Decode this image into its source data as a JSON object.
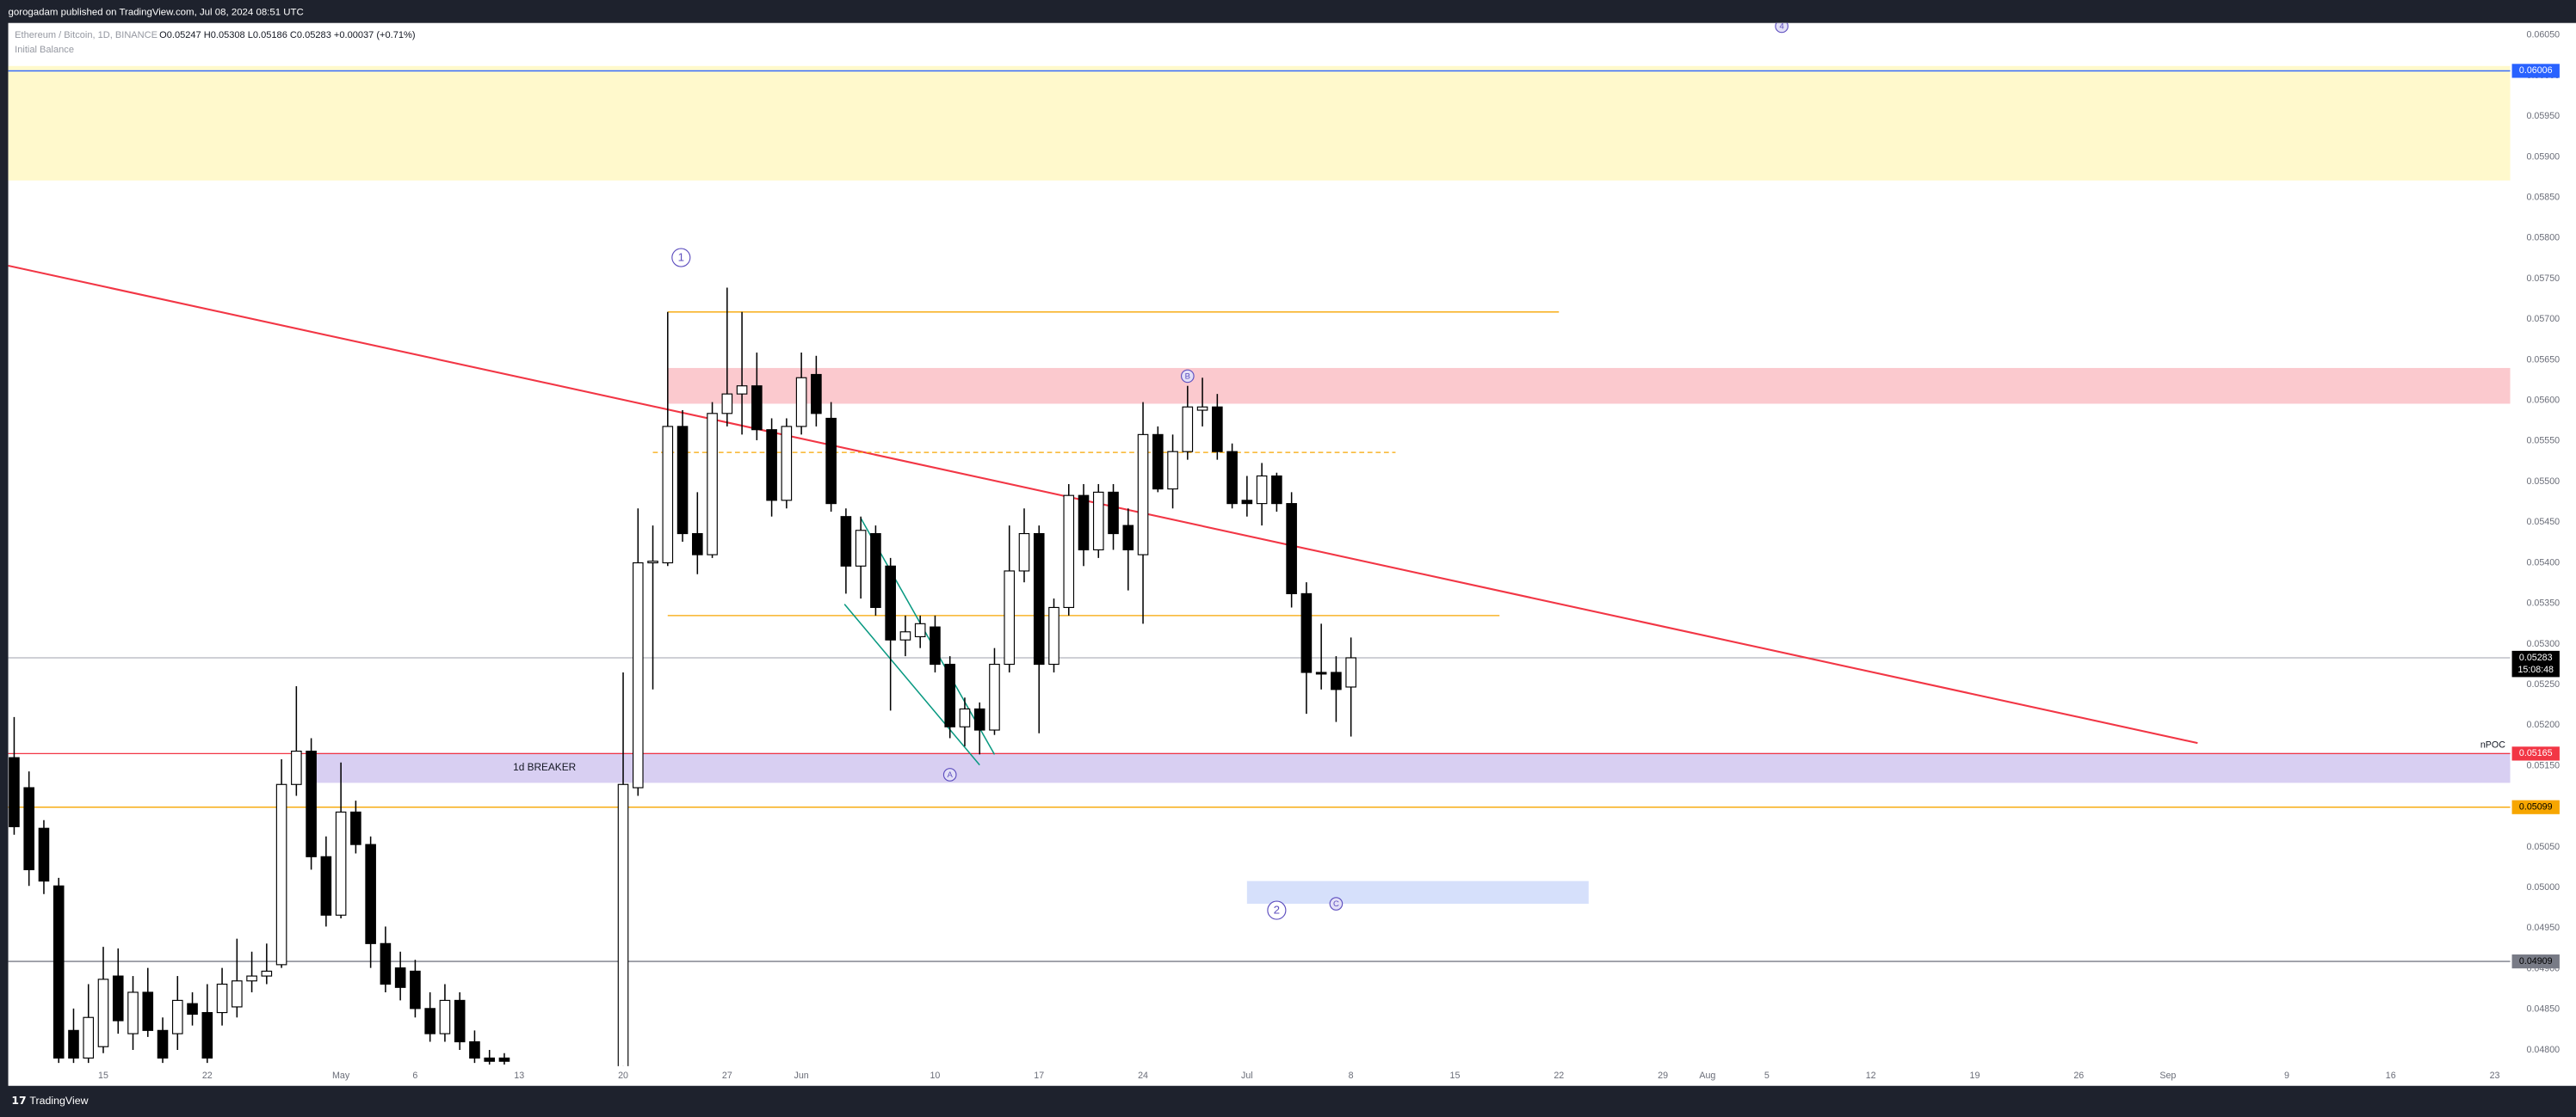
{
  "header": {
    "published": "gorogadam published on TradingView.com, Jul 08, 2024 08:51 UTC",
    "symbol": "Ethereum / Bitcoin, 1D, BINANCE",
    "ohlc": "O0.05247 H0.05308 L0.05186 C0.05283 +0.00037 (+0.71%)",
    "indicator": "Initial Balance"
  },
  "footer": "TradingView",
  "chart_data": {
    "type": "candlestick",
    "up_color": "#ffffff",
    "down_color": "#000000",
    "xlim": [
      -6.4,
      162.05
    ],
    "ylim": [
      0.0478,
      0.06065
    ],
    "grid": false,
    "xticks": [
      {
        "value": 0,
        "label": "15"
      },
      {
        "value": 7,
        "label": "22"
      },
      {
        "value": 16,
        "label": "May"
      },
      {
        "value": 21,
        "label": "6"
      },
      {
        "value": 28,
        "label": "13"
      },
      {
        "value": 35,
        "label": "20"
      },
      {
        "value": 42,
        "label": "27"
      },
      {
        "value": 47,
        "label": "Jun"
      },
      {
        "value": 56,
        "label": "10"
      },
      {
        "value": 63,
        "label": "17"
      },
      {
        "value": 70,
        "label": "24"
      },
      {
        "value": 77,
        "label": "Jul"
      },
      {
        "value": 84,
        "label": "8"
      },
      {
        "value": 91,
        "label": "15"
      },
      {
        "value": 98,
        "label": "22"
      },
      {
        "value": 105,
        "label": "29"
      },
      {
        "value": 108,
        "label": "Aug"
      },
      {
        "value": 112,
        "label": "5"
      },
      {
        "value": 119,
        "label": "12"
      },
      {
        "value": 126,
        "label": "19"
      },
      {
        "value": 133,
        "label": "26"
      },
      {
        "value": 139,
        "label": "Sep"
      },
      {
        "value": 147,
        "label": "9"
      },
      {
        "value": 154,
        "label": "16"
      },
      {
        "value": 161,
        "label": "23"
      }
    ],
    "yticks": [
      {
        "value": 0.048,
        "label": "0.04800"
      },
      {
        "value": 0.0485,
        "label": "0.04850"
      },
      {
        "value": 0.049,
        "label": "0.04900"
      },
      {
        "value": 0.0495,
        "label": "0.04950"
      },
      {
        "value": 0.05,
        "label": "0.05000"
      },
      {
        "value": 0.0505,
        "label": "0.05050"
      },
      {
        "value": 0.051,
        "label": "0.05100"
      },
      {
        "value": 0.0515,
        "label": "0.05150"
      },
      {
        "value": 0.052,
        "label": "0.05200"
      },
      {
        "value": 0.0525,
        "label": "0.05250"
      },
      {
        "value": 0.053,
        "label": "0.05300"
      },
      {
        "value": 0.0535,
        "label": "0.05350"
      },
      {
        "value": 0.054,
        "label": "0.05400"
      },
      {
        "value": 0.0545,
        "label": "0.05450"
      },
      {
        "value": 0.055,
        "label": "0.05500"
      },
      {
        "value": 0.0555,
        "label": "0.05550"
      },
      {
        "value": 0.056,
        "label": "0.05600"
      },
      {
        "value": 0.0565,
        "label": "0.05650"
      },
      {
        "value": 0.057,
        "label": "0.05700"
      },
      {
        "value": 0.0575,
        "label": "0.05750"
      },
      {
        "value": 0.058,
        "label": "0.05800"
      },
      {
        "value": 0.0585,
        "label": "0.05850"
      },
      {
        "value": 0.059,
        "label": "0.05900"
      },
      {
        "value": 0.0595,
        "label": "0.05950"
      },
      {
        "value": 0.06,
        "label": "0.06000"
      },
      {
        "value": 0.0605,
        "label": "0.06050"
      }
    ],
    "x": [
      -6,
      -5,
      -4,
      -3,
      -2,
      -1,
      0,
      1,
      2,
      3,
      4,
      5,
      6,
      7,
      8,
      9,
      10,
      11,
      12,
      13,
      14,
      15,
      16,
      17,
      18,
      19,
      20,
      21,
      22,
      23,
      24,
      25,
      26,
      27,
      35,
      36,
      37,
      38,
      39,
      40,
      41,
      42,
      43,
      44,
      45,
      46,
      47,
      48,
      49,
      50,
      51,
      52,
      53,
      54,
      55,
      56,
      57,
      58,
      59,
      60,
      61,
      62,
      63,
      64,
      65,
      66,
      67,
      68,
      69,
      70,
      71,
      72,
      73,
      74,
      75,
      76,
      77,
      78,
      79,
      80,
      81,
      82,
      83,
      84
    ],
    "open": [
      0.0516,
      0.05123,
      0.05073,
      0.05002,
      0.04824,
      0.0479,
      0.04804,
      0.04891,
      0.0482,
      0.04871,
      0.04824,
      0.0482,
      0.04857,
      0.04846,
      0.04846,
      0.04853,
      0.04885,
      0.04891,
      0.04905,
      0.05127,
      0.05168,
      0.05038,
      0.04966,
      0.05093,
      0.05053,
      0.04931,
      0.04901,
      0.04897,
      0.04851,
      0.0482,
      0.04861,
      0.0481,
      0.0479,
      0.0479,
      0.0475,
      0.05123,
      0.054,
      0.054,
      0.05568,
      0.05436,
      0.0541,
      0.05584,
      0.05608,
      0.05618,
      0.05564,
      0.05477,
      0.05568,
      0.05632,
      0.05578,
      0.05457,
      0.05396,
      0.05436,
      0.05396,
      0.05305,
      0.05309,
      0.05321,
      0.05275,
      0.05198,
      0.0522,
      0.05194,
      0.05275,
      0.0539,
      0.05436,
      0.05275,
      0.05345,
      0.05483,
      0.05416,
      0.05487,
      0.05446,
      0.0541,
      0.05558,
      0.05491,
      0.05537,
      0.05588,
      0.05592,
      0.05537,
      0.05477,
      0.05473,
      0.05507,
      0.05473,
      0.05362,
      0.05265,
      0.05265,
      0.05247
    ],
    "high": [
      0.0521,
      0.05143,
      0.05083,
      0.05012,
      0.04851,
      0.04881,
      0.04927,
      0.04925,
      0.04891,
      0.04901,
      0.0484,
      0.04891,
      0.04871,
      0.04881,
      0.04901,
      0.04937,
      0.04921,
      0.04931,
      0.05158,
      0.05248,
      0.05184,
      0.05063,
      0.05154,
      0.05107,
      0.05063,
      0.04952,
      0.04921,
      0.04911,
      0.04871,
      0.04881,
      0.04871,
      0.04824,
      0.048,
      0.04796,
      0.05265,
      0.05467,
      0.05446,
      0.05709,
      0.05588,
      0.05487,
      0.05598,
      0.05739,
      0.05709,
      0.05659,
      0.05578,
      0.05578,
      0.05659,
      0.05655,
      0.05598,
      0.05467,
      0.05457,
      0.05446,
      0.05406,
      0.05335,
      0.05335,
      0.05335,
      0.05285,
      0.05234,
      0.05228,
      0.05295,
      0.05446,
      0.05467,
      0.05446,
      0.05356,
      0.05497,
      0.05497,
      0.05497,
      0.05497,
      0.05467,
      0.05598,
      0.05568,
      0.05558,
      0.05618,
      0.05628,
      0.05608,
      0.05547,
      0.05507,
      0.05523,
      0.05511,
      0.05487,
      0.05376,
      0.05325,
      0.05285,
      0.05308
    ],
    "low": [
      0.05065,
      0.05002,
      0.04992,
      0.04784,
      0.04784,
      0.04784,
      0.04796,
      0.0482,
      0.048,
      0.04816,
      0.04784,
      0.048,
      0.0483,
      0.04784,
      0.0483,
      0.0484,
      0.04871,
      0.04881,
      0.04901,
      0.05113,
      0.05022,
      0.04952,
      0.04962,
      0.05042,
      0.04901,
      0.04871,
      0.04861,
      0.0484,
      0.0481,
      0.0481,
      0.048,
      0.04784,
      0.04782,
      0.04782,
      0.0472,
      0.05113,
      0.05244,
      0.05396,
      0.05426,
      0.05386,
      0.05406,
      0.05568,
      0.05558,
      0.05551,
      0.05457,
      0.05467,
      0.05558,
      0.05568,
      0.05463,
      0.05362,
      0.05356,
      0.05335,
      0.05218,
      0.05285,
      0.05295,
      0.05265,
      0.05184,
      0.05174,
      0.05164,
      0.05188,
      0.05265,
      0.05376,
      0.0519,
      0.05265,
      0.05335,
      0.05396,
      0.05406,
      0.05416,
      0.05366,
      0.05325,
      0.05487,
      0.05467,
      0.05527,
      0.05568,
      0.05527,
      0.05467,
      0.05457,
      0.05446,
      0.05463,
      0.05345,
      0.05214,
      0.05244,
      0.05204,
      0.05186
    ],
    "close": [
      0.05075,
      0.05022,
      0.05008,
      0.0479,
      0.0479,
      0.0484,
      0.04887,
      0.04836,
      0.04871,
      0.04824,
      0.0479,
      0.04861,
      0.04844,
      0.0479,
      0.04881,
      0.04885,
      0.04891,
      0.04897,
      0.05127,
      0.05168,
      0.05038,
      0.04966,
      0.05093,
      0.05053,
      0.04931,
      0.04881,
      0.04877,
      0.04851,
      0.0482,
      0.04861,
      0.0481,
      0.0479,
      0.04786,
      0.04786,
      0.05127,
      0.054,
      0.05402,
      0.05568,
      0.05436,
      0.0541,
      0.05584,
      0.05608,
      0.05618,
      0.05564,
      0.05477,
      0.05568,
      0.05628,
      0.05584,
      0.05473,
      0.05396,
      0.0544,
      0.05345,
      0.05305,
      0.05315,
      0.05325,
      0.05275,
      0.05198,
      0.0522,
      0.05194,
      0.05275,
      0.0539,
      0.05436,
      0.05275,
      0.05345,
      0.05483,
      0.05416,
      0.05487,
      0.05436,
      0.05416,
      0.05558,
      0.05491,
      0.05537,
      0.05592,
      0.05592,
      0.05537,
      0.05473,
      0.05473,
      0.05507,
      0.05473,
      0.05362,
      0.05265,
      0.05263,
      0.05244,
      0.05283
    ],
    "zones": [
      {
        "x": [
          -6.4,
          162.05
        ],
        "y": [
          0.05871,
          0.06012
        ],
        "color": "#fff9cc"
      },
      {
        "x": [
          38,
          162.05
        ],
        "y": [
          0.05596,
          0.0564
        ],
        "color": "#fbc9ce"
      },
      {
        "x": [
          14,
          162.05
        ],
        "y": [
          0.05129,
          0.05166
        ],
        "color": "#d8cff2",
        "label": "1d BREAKER"
      },
      {
        "x": [
          77,
          100
        ],
        "y": [
          0.0498,
          0.05008
        ],
        "color": "#d6e0fb"
      }
    ],
    "segments": [
      {
        "x": [
          -6.4,
          141
        ],
        "y": [
          0.05766,
          0.05178
        ],
        "color": "#f23645",
        "width": 1.1
      },
      {
        "x": [
          38,
          98
        ],
        "y": [
          0.05709,
          0.05709
        ],
        "color": "#f7a600",
        "width": 0.7
      },
      {
        "x": [
          37,
          87
        ],
        "y": [
          0.05536,
          0.05536
        ],
        "color": "#f7a600",
        "width": 0.7,
        "dash": true
      },
      {
        "x": [
          38,
          94
        ],
        "y": [
          0.05335,
          0.05335
        ],
        "color": "#f7a600",
        "width": 0.7
      },
      {
        "x": [
          49.9,
          59
        ],
        "y": [
          0.05349,
          0.05151
        ],
        "color": "#089981",
        "width": 0.8
      },
      {
        "x": [
          51,
          60
        ],
        "y": [
          0.05455,
          0.05164
        ],
        "color": "#089981",
        "width": 0.8
      }
    ],
    "levels": [
      {
        "value": 0.06006,
        "color": "#2962ff",
        "text_color": "#ffffff"
      },
      {
        "value": 0.05283,
        "color": "#b2b5be",
        "box": "#000000",
        "text_color": "#ffffff",
        "countdown": "15:08:48"
      },
      {
        "value": 0.05165,
        "color": "#f23645",
        "text_color": "#ffffff",
        "label": "nPOC"
      },
      {
        "value": 0.05099,
        "color": "#f7a600",
        "text_color": "#000000"
      },
      {
        "value": 0.04909,
        "color": "#787b86",
        "text_color": "#000000"
      }
    ],
    "markers": [
      {
        "text": "1",
        "x": 38.9,
        "y": 0.05776,
        "size": "big"
      },
      {
        "text": "2",
        "x": 79,
        "y": 0.04972,
        "size": "big"
      },
      {
        "text": "A",
        "x": 57,
        "y": 0.05139,
        "size": "small"
      },
      {
        "text": "B",
        "x": 73,
        "y": 0.0563,
        "size": "small"
      },
      {
        "text": "C",
        "x": 83,
        "y": 0.0498,
        "size": "small"
      },
      {
        "text": "4",
        "x": 113,
        "y": 0.06061,
        "size": "small"
      }
    ]
  }
}
